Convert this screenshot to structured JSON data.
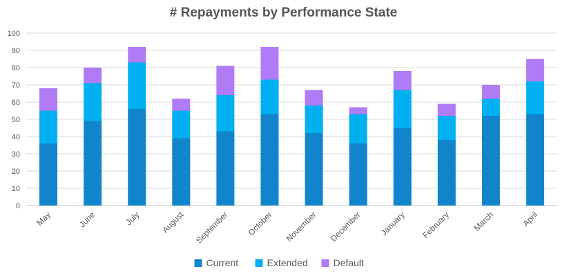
{
  "chart_data": {
    "type": "bar",
    "stacked": true,
    "title": "# Repayments by Performance State",
    "xlabel": "",
    "ylabel": "",
    "ylim": [
      0,
      100
    ],
    "yticks": [
      0,
      10,
      20,
      30,
      40,
      50,
      60,
      70,
      80,
      90,
      100
    ],
    "grid": true,
    "legend_position": "bottom",
    "categories": [
      "May",
      "June",
      "July",
      "August",
      "September",
      "October",
      "November",
      "December",
      "January",
      "February",
      "March",
      "April"
    ],
    "series": [
      {
        "name": "Current",
        "color": "#1185cc",
        "values": [
          36,
          49,
          56,
          39,
          43,
          53,
          42,
          36,
          45,
          38,
          52,
          53
        ]
      },
      {
        "name": "Extended",
        "color": "#00b0f0",
        "values": [
          19,
          22,
          27,
          16,
          21,
          20,
          16,
          17,
          22,
          14,
          10,
          19
        ]
      },
      {
        "name": "Default",
        "color": "#b07cf5",
        "values": [
          13,
          9,
          9,
          7,
          17,
          19,
          9,
          4,
          11,
          7,
          8,
          13
        ]
      }
    ]
  }
}
